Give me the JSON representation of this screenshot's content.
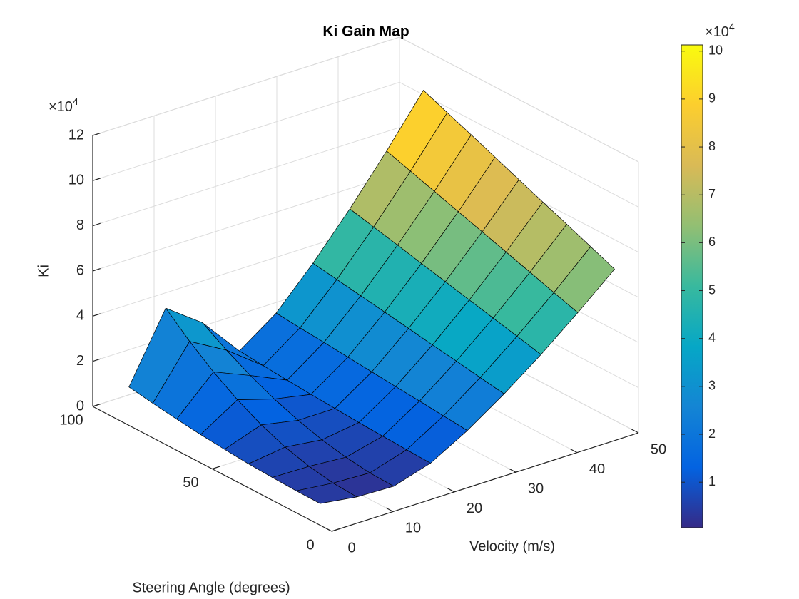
{
  "chart_data": {
    "type": "surface",
    "title": "Ki Gain Map",
    "x_label": "Velocity (m/s)",
    "y_label": "Steering Angle (degrees)",
    "z_label": "Ki",
    "z_exponent": {
      "base": "×10",
      "power": "4"
    },
    "x": [
      2,
      8,
      14,
      20,
      26,
      32,
      38,
      44,
      50
    ],
    "y": [
      10,
      20,
      30,
      40,
      50,
      60,
      70,
      80,
      90
    ],
    "z": [
      [
        0.5,
        0.27,
        0.22,
        0.72,
        1.64,
        2.74,
        3.96,
        5.29,
        6.7
      ],
      [
        0.51,
        0.33,
        0.26,
        0.76,
        1.74,
        2.91,
        4.22,
        5.63,
        7.14
      ],
      [
        0.55,
        0.52,
        0.4,
        0.81,
        1.84,
        3.09,
        4.47,
        5.98,
        7.58
      ],
      [
        0.6,
        0.82,
        0.62,
        0.86,
        1.93,
        3.25,
        4.72,
        6.32,
        8.01
      ],
      [
        0.69,
        1.25,
        0.93,
        0.93,
        2.03,
        3.43,
        4.98,
        6.66,
        8.45
      ],
      [
        0.79,
        1.81,
        1.32,
        1.0,
        2.13,
        3.6,
        5.23,
        7.0,
        8.89
      ],
      [
        0.92,
        2.49,
        1.81,
        1.08,
        2.23,
        3.77,
        5.49,
        7.35,
        9.33
      ],
      [
        1.07,
        3.29,
        2.38,
        1.17,
        2.32,
        3.94,
        5.74,
        7.69,
        9.76
      ],
      [
        1.24,
        4.21,
        3.04,
        1.27,
        2.42,
        4.11,
        5.99,
        8.03,
        10.2
      ]
    ],
    "xlim": [
      0,
      50
    ],
    "xticks": [
      0,
      10,
      20,
      30,
      40,
      50
    ],
    "ylim": [
      0,
      100
    ],
    "yticks": [
      0,
      50,
      100
    ],
    "zlim": [
      0,
      12
    ],
    "zticks": [
      0,
      2,
      4,
      6,
      8,
      10,
      12
    ],
    "grid": true,
    "edge_color": "#000000",
    "colorbar": {
      "clim": [
        0.05,
        10.13
      ],
      "ticks": [
        1,
        2,
        3,
        4,
        5,
        6,
        7,
        8,
        9,
        10
      ],
      "exponent": {
        "base": "×10",
        "power": "4"
      },
      "colormap": [
        "#352a87",
        "#0363e1",
        "#1485d4",
        "#06a7c6",
        "#38b99e",
        "#92bf73",
        "#d9ba56",
        "#fcce2e",
        "#f9fb0e"
      ]
    }
  }
}
